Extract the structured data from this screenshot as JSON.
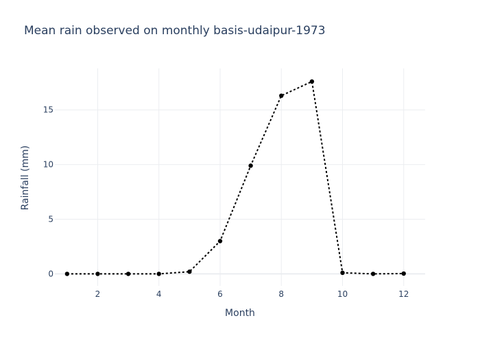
{
  "chart_data": {
    "type": "line",
    "title": "Mean rain observed on monthly basis-udaipur-1973",
    "xlabel": "Month",
    "ylabel": "Rainfall (mm)",
    "xlim": [
      0.6,
      12.7
    ],
    "ylim": [
      -1.1,
      18.8
    ],
    "x_ticks": [
      2,
      4,
      6,
      8,
      10,
      12
    ],
    "y_ticks": [
      0,
      5,
      10,
      15
    ],
    "grid": true,
    "line_style": "dotted",
    "color": "#000000",
    "x": [
      1,
      2,
      3,
      4,
      5,
      6,
      7,
      8,
      9,
      10,
      11,
      12
    ],
    "y": [
      0.0,
      0.0,
      0.0,
      0.0,
      0.2,
      3.0,
      9.9,
      16.3,
      17.6,
      0.1,
      0.0,
      0.03
    ]
  }
}
